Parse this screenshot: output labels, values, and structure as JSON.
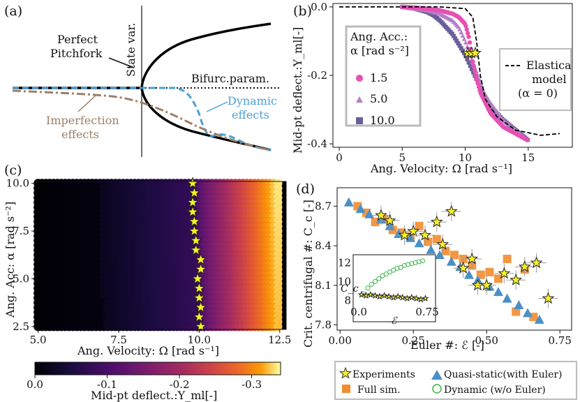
{
  "chart_data": [
    {
      "panel": "(a)",
      "type": "line",
      "ylabel": "State var.",
      "xlabel": "Bifurc.param.",
      "annotations": [
        "Perfect Pitchfork",
        "Imperfection effects",
        "Dynamic effects"
      ],
      "series": [
        {
          "name": "Perfect Pitchfork",
          "color": "#000000"
        },
        {
          "name": "Imperfection effects",
          "color": "#9c8068"
        },
        {
          "name": "Dynamic effects",
          "color": "#4a9fd6"
        }
      ]
    },
    {
      "panel": "(b)",
      "type": "scatter",
      "xlabel": "Ang. Velocity: Ω [rad s⁻¹]",
      "ylabel": "Mid-pt deflect.:Y_ml[-]",
      "xlim": [
        -0.5,
        18.5
      ],
      "ylim": [
        -0.41,
        0.01
      ],
      "xticks": [
        "0",
        "5",
        "10",
        "15"
      ],
      "yticks": [
        "0.0",
        "-0.2",
        "-0.4"
      ],
      "legend_title": "Ang. Acc.: α [rad s⁻²]",
      "series": [
        {
          "name": "1.5",
          "marker": "circle",
          "color": "#e84fb4",
          "x": [
            5,
            6,
            7,
            8,
            9,
            9.5,
            10,
            10.3,
            10.6,
            10.9,
            11.2,
            11.6,
            12,
            13,
            14,
            15
          ],
          "y": [
            0,
            -0.002,
            -0.005,
            -0.01,
            -0.02,
            -0.03,
            -0.05,
            -0.09,
            -0.16,
            -0.21,
            -0.25,
            -0.28,
            -0.31,
            -0.35,
            -0.37,
            -0.39
          ]
        },
        {
          "name": "5.0",
          "marker": "triangle",
          "color": "#b57fc4",
          "x": [
            5,
            6,
            7,
            8,
            9,
            9.5,
            10,
            10.5,
            11,
            11.5,
            12,
            13,
            14,
            15
          ],
          "y": [
            0,
            -0.005,
            -0.01,
            -0.02,
            -0.04,
            -0.06,
            -0.1,
            -0.15,
            -0.2,
            -0.25,
            -0.28,
            -0.33,
            -0.36,
            -0.39
          ]
        },
        {
          "name": "10.0",
          "marker": "square",
          "color": "#6b5f9a",
          "x": [
            5,
            6,
            7,
            7.5,
            8,
            8.5,
            9,
            9.5,
            10,
            10.5,
            11,
            11.5,
            12,
            13,
            14,
            15
          ],
          "y": [
            0,
            -0.005,
            -0.015,
            -0.025,
            -0.04,
            -0.06,
            -0.08,
            -0.11,
            -0.14,
            -0.18,
            -0.22,
            -0.26,
            -0.29,
            -0.33,
            -0.36,
            -0.39
          ]
        },
        {
          "name": "Elastica model (α = 0)",
          "marker": "dashed line",
          "color": "#000000",
          "x": [
            0,
            8,
            10,
            10.6,
            10.9,
            11.2,
            11.6,
            12.5,
            14,
            16,
            17.5
          ],
          "y": [
            0,
            0,
            -0.005,
            -0.03,
            -0.1,
            -0.2,
            -0.27,
            -0.32,
            -0.36,
            -0.375,
            -0.37
          ]
        }
      ],
      "critical_points": {
        "x": [
          10.2,
          10.5,
          10.8
        ],
        "y": [
          -0.135,
          -0.135,
          -0.135
        ]
      }
    },
    {
      "panel": "(c)",
      "type": "heatmap",
      "xlabel": "Ang. Velocity: Ω [rad s⁻¹]",
      "ylabel": "Ang. Acc: α [rad s⁻²]",
      "xlim": [
        4.9,
        12.7
      ],
      "ylim": [
        2.35,
        10.1
      ],
      "xticks": [
        "5.0",
        "7.5",
        "10.0",
        "12.5"
      ],
      "yticks": [
        "2.5",
        "5.0",
        "7.5",
        "10.0"
      ],
      "colorbar_label": "Mid-pt deflect.:Y_ml[-]",
      "colorbar_ticks": [
        "0.0",
        "-0.1",
        "-0.2",
        "-0.3"
      ],
      "critical_alpha": [
        10,
        9.5,
        9,
        8.5,
        8,
        7.5,
        7,
        6.5,
        6,
        5.5,
        5,
        4.5,
        4,
        3.5,
        3,
        2.5
      ],
      "critical_omega": [
        9.8,
        9.85,
        9.8,
        9.8,
        9.85,
        9.85,
        9.9,
        9.9,
        10.05,
        10.05,
        9.95,
        10.0,
        10.0,
        10.05,
        10.0,
        10.05
      ]
    },
    {
      "panel": "(d)",
      "type": "scatter",
      "xlabel": "Euler #: ℰ [-]",
      "ylabel": "Crit. centrifugal #: C_c [-]",
      "xlim": [
        -0.01,
        0.79
      ],
      "ylim": [
        7.76,
        8.84
      ],
      "xticks": [
        "0.00",
        "0.25",
        "0.50",
        "0.75"
      ],
      "yticks": [
        "7.8",
        "8.1",
        "8.4",
        "8.7"
      ],
      "series": [
        {
          "name": "Experiments",
          "marker": "star",
          "color": "#f5ef2a",
          "x": [
            0.14,
            0.17,
            0.22,
            0.25,
            0.29,
            0.33,
            0.35,
            0.38,
            0.42,
            0.45,
            0.47,
            0.5,
            0.56,
            0.6,
            0.63,
            0.67,
            0.71
          ],
          "y": [
            8.63,
            8.59,
            8.48,
            8.51,
            8.48,
            8.58,
            8.41,
            8.66,
            8.23,
            8.3,
            8.1,
            8.1,
            8.19,
            8.14,
            8.24,
            8.27,
            8.0
          ]
        },
        {
          "name": "Quasi-static (with Euler)",
          "marker": "triangle",
          "color": "#4a8fc8",
          "x": [
            0.03,
            0.07,
            0.1,
            0.14,
            0.17,
            0.2,
            0.24,
            0.27,
            0.31,
            0.34,
            0.38,
            0.41,
            0.44,
            0.47,
            0.51,
            0.54,
            0.57,
            0.61,
            0.64,
            0.68
          ],
          "y": [
            8.73,
            8.68,
            8.64,
            8.6,
            8.55,
            8.49,
            8.46,
            8.42,
            8.37,
            8.33,
            8.28,
            8.24,
            8.18,
            8.14,
            8.09,
            8.05,
            8.0,
            7.95,
            7.89,
            7.84
          ]
        },
        {
          "name": "Full sim.",
          "marker": "square",
          "color": "#f28c2e",
          "x": [
            0.06,
            0.09,
            0.12,
            0.15,
            0.18,
            0.21,
            0.24,
            0.27,
            0.3,
            0.33,
            0.36,
            0.39,
            0.42,
            0.45,
            0.48,
            0.51,
            0.54,
            0.57,
            0.6,
            0.63,
            0.66
          ],
          "y": [
            8.7,
            8.65,
            8.58,
            8.6,
            8.52,
            8.5,
            8.47,
            8.55,
            8.43,
            8.45,
            8.36,
            8.33,
            8.3,
            8.25,
            8.18,
            8.2,
            8.15,
            8.3,
            7.9,
            8.22,
            7.86
          ]
        }
      ],
      "inset": {
        "xlabel": "ℰ",
        "ylabel": "C_c",
        "xticks": [
          "0.0",
          "0.75"
        ],
        "yticks": [
          "8",
          "10",
          "12"
        ],
        "series": [
          {
            "name": "Dynamic (w/o Euler)",
            "marker": "open circle",
            "color": "#3db34a",
            "x": [
              0.05,
              0.1,
              0.14,
              0.18,
              0.22,
              0.26,
              0.3,
              0.34,
              0.38,
              0.42,
              0.46,
              0.5,
              0.54,
              0.58,
              0.62,
              0.66,
              0.7
            ],
            "y": [
              8.7,
              9.3,
              9.7,
              10.0,
              10.3,
              10.6,
              10.8,
              11.0,
              11.2,
              11.4,
              11.5,
              11.7,
              11.8,
              11.9,
              12.0,
              12.1,
              12.2
            ]
          },
          {
            "name": "Experiments",
            "marker": "star",
            "color": "#f5ef2a",
            "x": [
              0.03,
              0.08,
              0.13,
              0.18,
              0.23,
              0.28,
              0.33,
              0.38,
              0.43,
              0.48,
              0.53,
              0.58,
              0.63,
              0.68,
              0.73
            ],
            "y": [
              8.6,
              8.5,
              8.6,
              8.5,
              8.4,
              8.5,
              8.4,
              8.3,
              8.4,
              8.3,
              8.2,
              8.3,
              8.2,
              8.1,
              8.2
            ]
          }
        ]
      }
    }
  ],
  "legend_d": {
    "experiments": "Experiments",
    "quasi_static": "Quasi-static(with Euler)",
    "full_sim": "Full sim.",
    "dynamic": "Dynamic (w/o Euler)"
  }
}
